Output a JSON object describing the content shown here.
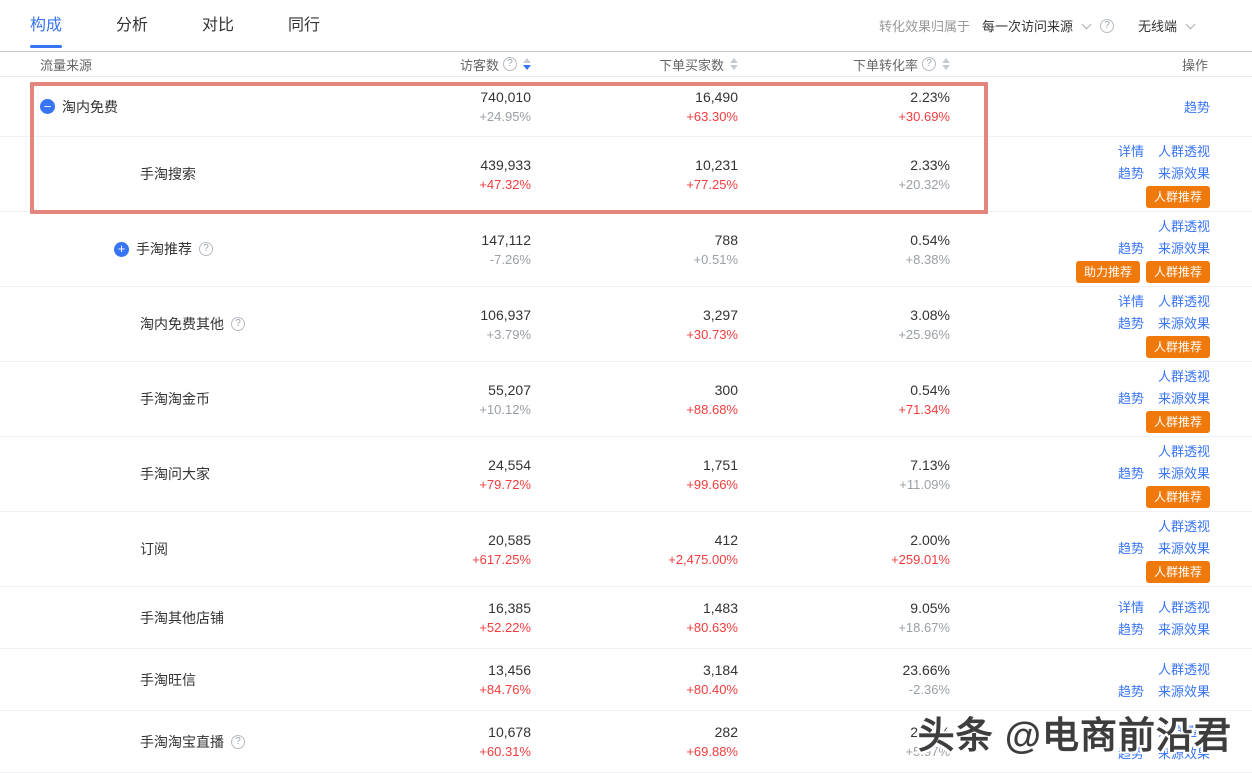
{
  "colors": {
    "accent": "#3875F6",
    "red": "#F23D3D",
    "orange": "#F0790C",
    "highlight_border": "#E2857C"
  },
  "tabs": {
    "items": [
      {
        "label": "构成",
        "active": true
      },
      {
        "label": "分析",
        "active": false
      },
      {
        "label": "对比",
        "active": false
      },
      {
        "label": "同行",
        "active": false
      }
    ]
  },
  "toolbar": {
    "attribution_label": "转化效果归属于",
    "attribution_value": "每一次访问来源",
    "terminal_value": "无线端"
  },
  "table": {
    "columns": {
      "source": "流量来源",
      "visitors": "访客数",
      "buyers": "下单买家数",
      "conversion": "下单转化率",
      "actions": "操作"
    },
    "sorted_by": "访客数",
    "sort_direction": "desc",
    "rows": [
      {
        "name": "淘内免费",
        "icon": "minus",
        "help": false,
        "level": 0,
        "highlighted": true,
        "visitors": {
          "value": "740,010",
          "delta": "+24.95%",
          "delta_color": "gray"
        },
        "buyers": {
          "value": "16,490",
          "delta": "+63.30%",
          "delta_color": "red"
        },
        "conversion": {
          "value": "2.23%",
          "delta": "+30.69%",
          "delta_color": "red"
        },
        "actions": {
          "line1": [
            "趋势"
          ],
          "line2": [],
          "badges": []
        }
      },
      {
        "name": "手淘搜索",
        "icon": "none",
        "help": false,
        "level": 1,
        "highlighted": true,
        "visitors": {
          "value": "439,933",
          "delta": "+47.32%",
          "delta_color": "red"
        },
        "buyers": {
          "value": "10,231",
          "delta": "+77.25%",
          "delta_color": "red"
        },
        "conversion": {
          "value": "2.33%",
          "delta": "+20.32%",
          "delta_color": "gray"
        },
        "actions": {
          "line1": [
            "详情",
            "人群透视"
          ],
          "line2": [
            "趋势",
            "来源效果"
          ],
          "badges": [
            "人群推荐"
          ]
        }
      },
      {
        "name": "手淘推荐",
        "icon": "plus",
        "help": true,
        "level": 1,
        "highlighted": false,
        "visitors": {
          "value": "147,112",
          "delta": "-7.26%",
          "delta_color": "gray"
        },
        "buyers": {
          "value": "788",
          "delta": "+0.51%",
          "delta_color": "gray"
        },
        "conversion": {
          "value": "0.54%",
          "delta": "+8.38%",
          "delta_color": "gray"
        },
        "actions": {
          "line1": [
            "人群透视"
          ],
          "line2": [
            "趋势",
            "来源效果"
          ],
          "badges": [
            "助力推荐",
            "人群推荐"
          ]
        }
      },
      {
        "name": "淘内免费其他",
        "icon": "none",
        "help": true,
        "level": 1,
        "highlighted": false,
        "visitors": {
          "value": "106,937",
          "delta": "+3.79%",
          "delta_color": "gray"
        },
        "buyers": {
          "value": "3,297",
          "delta": "+30.73%",
          "delta_color": "red"
        },
        "conversion": {
          "value": "3.08%",
          "delta": "+25.96%",
          "delta_color": "gray"
        },
        "actions": {
          "line1": [
            "详情",
            "人群透视"
          ],
          "line2": [
            "趋势",
            "来源效果"
          ],
          "badges": [
            "人群推荐"
          ]
        }
      },
      {
        "name": "手淘淘金币",
        "icon": "none",
        "help": false,
        "level": 1,
        "highlighted": false,
        "visitors": {
          "value": "55,207",
          "delta": "+10.12%",
          "delta_color": "gray"
        },
        "buyers": {
          "value": "300",
          "delta": "+88.68%",
          "delta_color": "red"
        },
        "conversion": {
          "value": "0.54%",
          "delta": "+71.34%",
          "delta_color": "red"
        },
        "actions": {
          "line1": [
            "人群透视"
          ],
          "line2": [
            "趋势",
            "来源效果"
          ],
          "badges": [
            "人群推荐"
          ]
        }
      },
      {
        "name": "手淘问大家",
        "icon": "none",
        "help": false,
        "level": 1,
        "highlighted": false,
        "visitors": {
          "value": "24,554",
          "delta": "+79.72%",
          "delta_color": "red"
        },
        "buyers": {
          "value": "1,751",
          "delta": "+99.66%",
          "delta_color": "red"
        },
        "conversion": {
          "value": "7.13%",
          "delta": "+11.09%",
          "delta_color": "gray"
        },
        "actions": {
          "line1": [
            "人群透视"
          ],
          "line2": [
            "趋势",
            "来源效果"
          ],
          "badges": [
            "人群推荐"
          ]
        }
      },
      {
        "name": "订阅",
        "icon": "none",
        "help": false,
        "level": 1,
        "highlighted": false,
        "visitors": {
          "value": "20,585",
          "delta": "+617.25%",
          "delta_color": "red"
        },
        "buyers": {
          "value": "412",
          "delta": "+2,475.00%",
          "delta_color": "red"
        },
        "conversion": {
          "value": "2.00%",
          "delta": "+259.01%",
          "delta_color": "red"
        },
        "actions": {
          "line1": [
            "人群透视"
          ],
          "line2": [
            "趋势",
            "来源效果"
          ],
          "badges": [
            "人群推荐"
          ]
        }
      },
      {
        "name": "手淘其他店铺",
        "icon": "none",
        "help": false,
        "level": 1,
        "highlighted": false,
        "visitors": {
          "value": "16,385",
          "delta": "+52.22%",
          "delta_color": "red"
        },
        "buyers": {
          "value": "1,483",
          "delta": "+80.63%",
          "delta_color": "red"
        },
        "conversion": {
          "value": "9.05%",
          "delta": "+18.67%",
          "delta_color": "gray"
        },
        "actions": {
          "line1": [
            "详情",
            "人群透视"
          ],
          "line2": [
            "趋势",
            "来源效果"
          ],
          "badges": []
        }
      },
      {
        "name": "手淘旺信",
        "icon": "none",
        "help": false,
        "level": 1,
        "highlighted": false,
        "visitors": {
          "value": "13,456",
          "delta": "+84.76%",
          "delta_color": "red"
        },
        "buyers": {
          "value": "3,184",
          "delta": "+80.40%",
          "delta_color": "red"
        },
        "conversion": {
          "value": "23.66%",
          "delta": "-2.36%",
          "delta_color": "gray"
        },
        "actions": {
          "line1": [
            "人群透视"
          ],
          "line2": [
            "趋势",
            "来源效果"
          ],
          "badges": []
        }
      },
      {
        "name": "手淘淘宝直播",
        "icon": "none",
        "help": true,
        "level": 1,
        "highlighted": false,
        "visitors": {
          "value": "10,678",
          "delta": "+60.31%",
          "delta_color": "red"
        },
        "buyers": {
          "value": "282",
          "delta": "+69.88%",
          "delta_color": "red"
        },
        "conversion": {
          "value": "2.64%",
          "delta": "+5.97%",
          "delta_color": "gray"
        },
        "actions": {
          "line1": [
            "人群透视"
          ],
          "line2": [
            "趋势",
            "来源效果"
          ],
          "badges": []
        }
      }
    ]
  },
  "watermark": {
    "text": "头条 @电商前沿君"
  }
}
